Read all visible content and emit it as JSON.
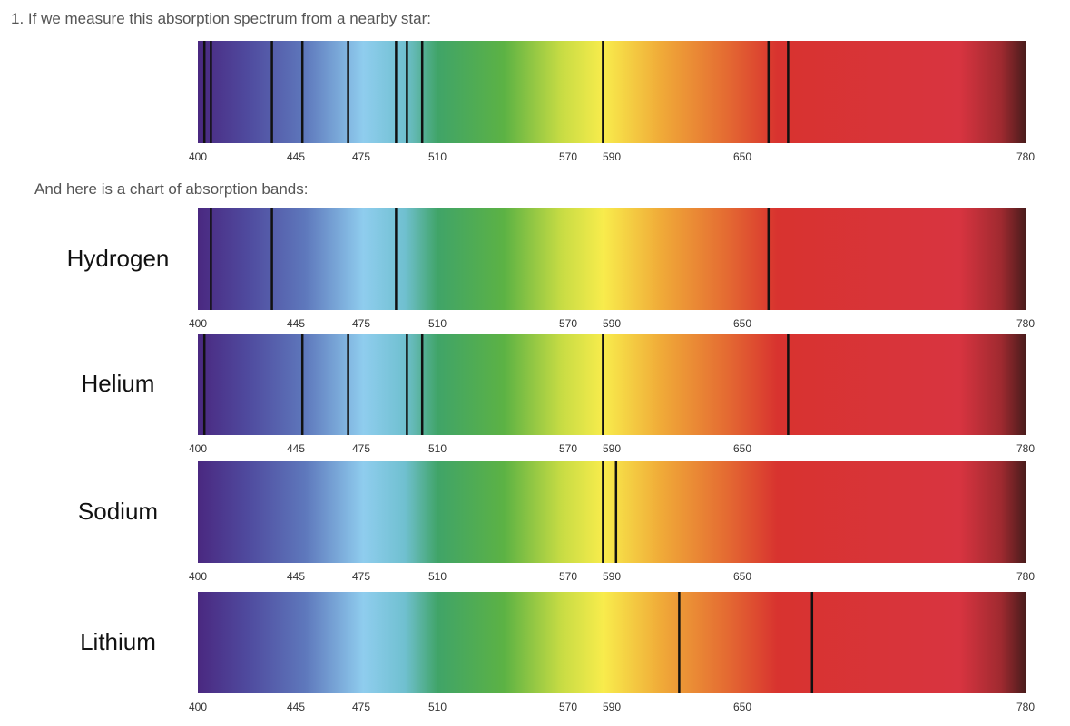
{
  "question": "1. If we measure this absorption spectrum from a nearby star:",
  "star_lines": [
    403,
    406,
    434,
    448,
    469,
    491,
    496,
    503,
    586,
    662,
    671
  ],
  "chart_caption": "And here is a chart of absorption bands:",
  "axis": {
    "xlim": [
      400,
      780
    ],
    "xticks": [
      400,
      445,
      475,
      510,
      570,
      590,
      650,
      780
    ]
  },
  "elements": [
    {
      "name": "Hydrogen",
      "lines": [
        406,
        434,
        491,
        662
      ]
    },
    {
      "name": "Helium",
      "lines": [
        403,
        448,
        469,
        496,
        503,
        586,
        671
      ]
    },
    {
      "name": "Sodium",
      "lines": [
        586,
        592
      ]
    },
    {
      "name": "Lithium",
      "lines": [
        621,
        682
      ]
    }
  ]
}
